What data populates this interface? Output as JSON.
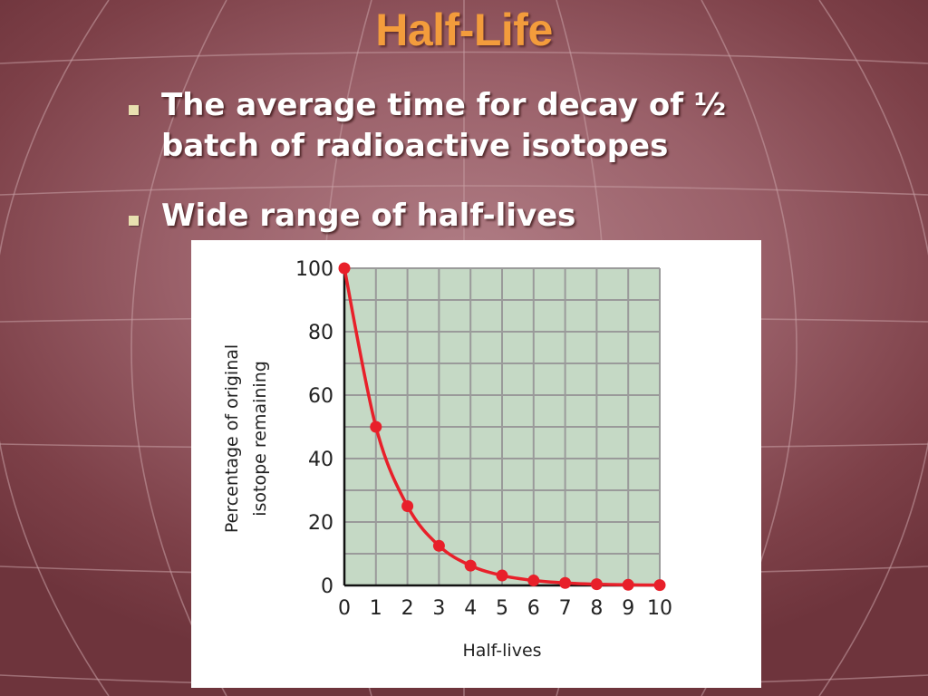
{
  "slide": {
    "title": "Half-Life",
    "bullets": [
      {
        "line1": "The average time for decay of ½",
        "line2": "batch of radioactive isotopes"
      },
      {
        "line1": "Wide range of half-lives"
      }
    ]
  },
  "colors": {
    "title": "#f39c3c",
    "bullet_text": "#ffffff",
    "curve": "#e8202a",
    "plot_background": "#c5d9c5",
    "grid": "#9a9a9a"
  },
  "chart_data": {
    "type": "line",
    "xlabel": "Half-lives",
    "ylabel_lines": [
      "Percentage of original",
      "isotope remaining"
    ],
    "x": [
      0,
      1,
      2,
      3,
      4,
      5,
      6,
      7,
      8,
      9,
      10
    ],
    "series": [
      {
        "values": [
          100,
          50,
          25,
          12.5,
          6.25,
          3.13,
          1.56,
          0.78,
          0.39,
          0.2,
          0.1
        ]
      }
    ],
    "xlim": [
      0,
      10
    ],
    "ylim": [
      0,
      100
    ],
    "x_ticks": [
      "0",
      "1",
      "2",
      "3",
      "4",
      "5",
      "6",
      "7",
      "8",
      "9",
      "10"
    ],
    "y_ticks": [
      "0",
      "20",
      "40",
      "60",
      "80",
      "100"
    ],
    "grid": true,
    "markers": true
  }
}
